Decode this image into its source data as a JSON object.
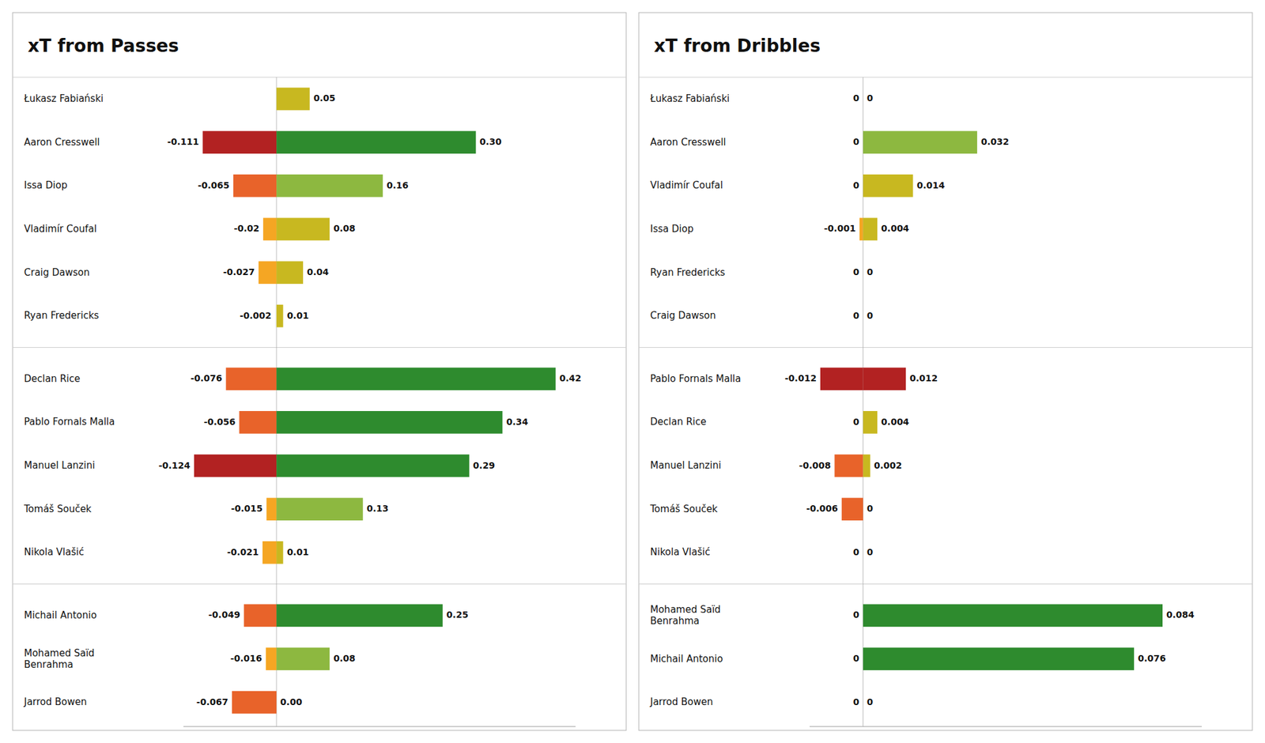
{
  "chart_data": [
    {
      "type": "bar",
      "orientation": "horizontal",
      "title": "xT from Passes",
      "categories": [
        "Łukasz Fabiański",
        "Aaron Cresswell",
        "Issa Diop",
        "Vladimír Coufal",
        "Craig Dawson",
        "Ryan Fredericks",
        "Declan Rice",
        "Pablo Fornals Malla",
        "Manuel Lanzini",
        "Tomáš Souček",
        "Nikola Vlašić",
        "Michail Antonio",
        "Mohamed Saïd\nBenrahma",
        "Jarrod Bowen"
      ],
      "groups": [
        0,
        0,
        0,
        0,
        0,
        0,
        1,
        1,
        1,
        1,
        1,
        2,
        2,
        2
      ],
      "series": [
        {
          "values": [
            0.0,
            -0.111,
            -0.065,
            -0.02,
            -0.027,
            -0.002,
            -0.076,
            -0.056,
            -0.124,
            -0.015,
            -0.021,
            -0.049,
            -0.016,
            -0.067
          ],
          "colors": [
            "#eeeeee",
            "#b22222",
            "#e8632a",
            "#f5a623",
            "#f5a623",
            "#eeeeee",
            "#e8632a",
            "#e8632a",
            "#b22222",
            "#f5a623",
            "#f5a623",
            "#e8632a",
            "#f5a623",
            "#e8632a"
          ],
          "value_labels": [
            null,
            "-0.111",
            "-0.065",
            "-0.02",
            "-0.027",
            "-0.002",
            "-0.076",
            "-0.056",
            "-0.124",
            "-0.015",
            "-0.021",
            "-0.049",
            "-0.016",
            "-0.067"
          ]
        },
        {
          "values": [
            0.05,
            0.3,
            0.16,
            0.08,
            0.04,
            0.01,
            0.42,
            0.34,
            0.29,
            0.13,
            0.01,
            0.25,
            0.08,
            0.0
          ],
          "colors": [
            "#c8b820",
            "#2e8b2e",
            "#8db840",
            "#c8b820",
            "#c8b820",
            "#c8b820",
            "#2e8b2e",
            "#2e8b2e",
            "#2e8b2e",
            "#8db840",
            "#c8b820",
            "#2e8b2e",
            "#8db840",
            "#eeeeee"
          ],
          "value_labels": [
            "0.05",
            "0.30",
            "0.16",
            "0.08",
            "0.04",
            "0.01",
            "0.42",
            "0.34",
            "0.29",
            "0.13",
            "0.01",
            "0.25",
            "0.08",
            "0.00"
          ]
        }
      ],
      "xlim": [
        -0.14,
        0.45
      ],
      "tick_labels": false,
      "data_labels": true,
      "grid": false
    },
    {
      "type": "bar",
      "orientation": "horizontal",
      "title": "xT from Dribbles",
      "categories": [
        "Łukasz Fabiański",
        "Aaron Cresswell",
        "Vladimír Coufal",
        "Issa Diop",
        "Ryan Fredericks",
        "Craig Dawson",
        "Pablo Fornals Malla",
        "Declan Rice",
        "Manuel Lanzini",
        "Tomáš Souček",
        "Nikola Vlašić",
        "Mohamed Saïd\nBenrahma",
        "Michail Antonio",
        "Jarrod Bowen"
      ],
      "groups": [
        0,
        0,
        0,
        0,
        0,
        0,
        1,
        1,
        1,
        1,
        1,
        2,
        2,
        2
      ],
      "series": [
        {
          "values": [
            0.0,
            0.0,
            0.0,
            -0.001,
            0.0,
            0.0,
            -0.012,
            0.0,
            -0.008,
            -0.006,
            0.0,
            0.0,
            0.0,
            0.0
          ],
          "colors": [
            "#eeeeee",
            "#eeeeee",
            "#eeeeee",
            "#f5a623",
            "#eeeeee",
            "#eeeeee",
            "#b22222",
            "#eeeeee",
            "#e8632a",
            "#e8632a",
            "#eeeeee",
            "#eeeeee",
            "#eeeeee",
            "#eeeeee"
          ],
          "value_labels": [
            "0",
            "0",
            "0",
            "-0.001",
            "0",
            "0",
            "-0.012",
            "0",
            "-0.008",
            "-0.006",
            "0",
            "0",
            "0",
            "0"
          ]
        },
        {
          "values": [
            0.0,
            0.032,
            0.014,
            0.004,
            0.0,
            0.0,
            0.012,
            0.004,
            0.002,
            0.0,
            0.0,
            0.084,
            0.076,
            0.0
          ],
          "colors": [
            "#eeeeee",
            "#8db840",
            "#c8b820",
            "#c8b820",
            "#eeeeee",
            "#eeeeee",
            "#b22222",
            "#c8b820",
            "#c8b820",
            "#eeeeee",
            "#eeeeee",
            "#2e8b2e",
            "#2e8b2e",
            "#eeeeee"
          ],
          "value_labels": [
            "0",
            "0.032",
            "0.014",
            "0.004",
            "0",
            "0",
            "0.012",
            "0.004",
            "0.002",
            "0",
            "0",
            "0.084",
            "0.076",
            "0"
          ]
        }
      ],
      "xlim": [
        -0.015,
        0.095
      ],
      "tick_labels": false,
      "data_labels": true,
      "grid": false
    }
  ]
}
